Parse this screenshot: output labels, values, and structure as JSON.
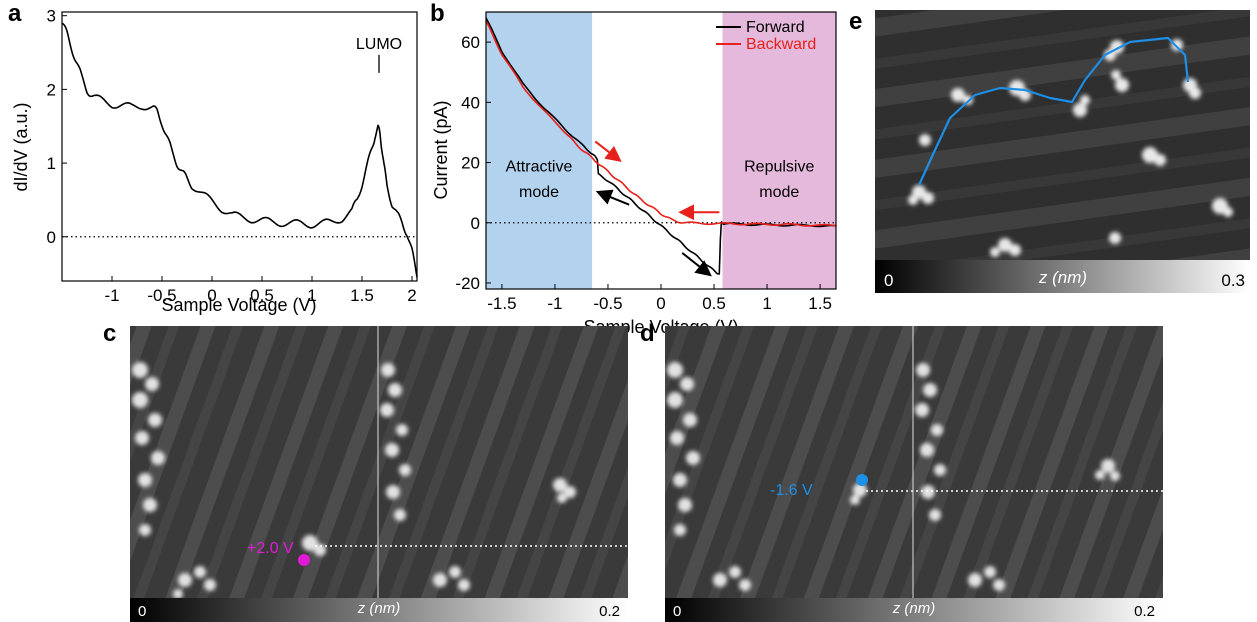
{
  "panels": {
    "a": {
      "letter": "a"
    },
    "b": {
      "letter": "b"
    },
    "c": {
      "letter": "c"
    },
    "d": {
      "letter": "d"
    },
    "e": {
      "letter": "e"
    }
  },
  "chart_data": [
    {
      "id": "a",
      "type": "line",
      "xlabel": "Sample Voltage (V)",
      "ylabel": "dI/dV (a.u.)",
      "xlim": [
        -1.5,
        2.05
      ],
      "ylim": [
        -0.6,
        3.05
      ],
      "xticks": [
        -1,
        -0.5,
        0,
        0.5,
        1,
        1.5,
        2
      ],
      "xtick_labels": [
        "-1",
        "-0.5",
        "0",
        "0.5",
        "1",
        "1.5",
        "2"
      ],
      "yticks": [
        0,
        1,
        2,
        3
      ],
      "ytick_labels": [
        "0",
        "1",
        "2",
        "3"
      ],
      "zero_line": "dotted",
      "annotations": [
        {
          "text": "LUMO",
          "x": 1.67,
          "y": 2.55
        }
      ],
      "series": [
        {
          "color": "#000000",
          "x": [
            -1.5,
            -1.45,
            -1.4,
            -1.35,
            -1.3,
            -1.25,
            -1.2,
            -1.1,
            -1.0,
            -0.9,
            -0.8,
            -0.7,
            -0.6,
            -0.55,
            -0.5,
            -0.45,
            -0.4,
            -0.35,
            -0.3,
            -0.25,
            -0.2,
            -0.1,
            0.0,
            0.1,
            0.2,
            0.3,
            0.4,
            0.5,
            0.6,
            0.7,
            0.8,
            0.9,
            1.0,
            1.1,
            1.2,
            1.3,
            1.4,
            1.45,
            1.5,
            1.55,
            1.6,
            1.63,
            1.66,
            1.68,
            1.7,
            1.72,
            1.75,
            1.8,
            1.85,
            1.9,
            1.95,
            2.0,
            2.05
          ],
          "y": [
            2.9,
            2.75,
            2.55,
            2.35,
            2.15,
            2.0,
            1.9,
            1.85,
            1.8,
            1.78,
            1.76,
            1.78,
            1.75,
            1.7,
            1.55,
            1.35,
            1.15,
            1.0,
            0.88,
            0.78,
            0.7,
            0.58,
            0.48,
            0.38,
            0.3,
            0.26,
            0.24,
            0.22,
            0.2,
            0.19,
            0.18,
            0.18,
            0.17,
            0.18,
            0.2,
            0.25,
            0.35,
            0.5,
            0.72,
            0.95,
            1.2,
            1.38,
            1.47,
            1.4,
            1.2,
            0.95,
            0.7,
            0.45,
            0.3,
            0.2,
            0.05,
            -0.2,
            -0.55
          ]
        }
      ]
    },
    {
      "id": "b",
      "type": "line",
      "xlabel": "Sample Voltage (V)",
      "ylabel": "Current (pA)",
      "xlim": [
        -1.65,
        1.65
      ],
      "ylim": [
        -22,
        70
      ],
      "xticks": [
        -1.5,
        -1,
        -0.5,
        0,
        0.5,
        1,
        1.5
      ],
      "xtick_labels": [
        "-1.5",
        "-1",
        "-0.5",
        "0",
        "0.5",
        "1",
        "1.5"
      ],
      "yticks": [
        -20,
        0,
        20,
        40,
        60
      ],
      "ytick_labels": [
        "-20",
        "0",
        "20",
        "40",
        "60"
      ],
      "zero_line": "dotted",
      "regions": [
        {
          "x0": -1.65,
          "x1": -0.65,
          "color": "#b3d2ee",
          "label1": "Attractive",
          "label2": "mode"
        },
        {
          "x0": 0.58,
          "x1": 1.65,
          "color": "#e4b9db",
          "label1": "Repulsive",
          "label2": "mode"
        }
      ],
      "legend": {
        "position": "top-right",
        "entries": [
          {
            "name": "Forward",
            "color": "#000000"
          },
          {
            "name": "Backward",
            "color": "#e8201c"
          }
        ]
      },
      "series": [
        {
          "name": "Forward",
          "color": "#000000",
          "x": [
            -1.65,
            -1.5,
            -1.3,
            -1.1,
            -0.9,
            -0.75,
            -0.65,
            -0.6,
            -0.59,
            -0.5,
            -0.4,
            -0.3,
            -0.2,
            -0.1,
            0.0,
            0.1,
            0.2,
            0.3,
            0.4,
            0.5,
            0.55,
            0.56,
            0.57,
            0.6,
            0.8,
            1.0,
            1.2,
            1.4,
            1.65
          ],
          "y": [
            68,
            57,
            46,
            38,
            31,
            26,
            23,
            21,
            16,
            14,
            11,
            8,
            5,
            2,
            -1,
            -4,
            -7,
            -10,
            -13,
            -16,
            -17,
            -5,
            0,
            -0.3,
            -0.5,
            -0.7,
            -0.8,
            -0.9,
            -1.0
          ]
        },
        {
          "name": "Backward",
          "color": "#e8201c",
          "x": [
            1.65,
            1.4,
            1.2,
            1.0,
            0.8,
            0.6,
            0.4,
            0.2,
            0.1,
            0.0,
            -0.1,
            -0.2,
            -0.3,
            -0.4,
            -0.5,
            -0.6,
            -0.7,
            -0.8,
            -0.9,
            -1.1,
            -1.3,
            -1.5,
            -1.65
          ],
          "y": [
            -1.0,
            -0.8,
            -0.6,
            -0.5,
            -0.4,
            -0.3,
            -0.2,
            0,
            1,
            3,
            5.5,
            8,
            11,
            14,
            17,
            20,
            23,
            26,
            30,
            37,
            45,
            56,
            67
          ]
        }
      ],
      "arrows": [
        {
          "color": "#e8201c",
          "from": [
            -0.62,
            27
          ],
          "to": [
            -0.4,
            21
          ]
        },
        {
          "color": "#000000",
          "from": [
            -0.3,
            6
          ],
          "to": [
            -0.58,
            10
          ]
        },
        {
          "color": "#e8201c",
          "from": [
            0.55,
            3.5
          ],
          "to": [
            0.2,
            3.5
          ]
        },
        {
          "color": "#000000",
          "from": [
            0.2,
            -10
          ],
          "to": [
            0.45,
            -17
          ]
        }
      ]
    }
  ],
  "images": {
    "c": {
      "voltage_label": "+2.0 V",
      "colorbar": {
        "min": "0",
        "label": "z (nm)",
        "max": "0.2"
      },
      "marker_color": "#e11ad6"
    },
    "d": {
      "voltage_label": "-1.6 V",
      "colorbar": {
        "min": "0",
        "label": "z (nm)",
        "max": "0.2"
      },
      "marker_color": "#1e8fe6"
    },
    "e": {
      "colorbar": {
        "min": "0",
        "label": "z (nm)",
        "max": "0.3"
      },
      "trace_color": "#1e8fe6"
    }
  }
}
